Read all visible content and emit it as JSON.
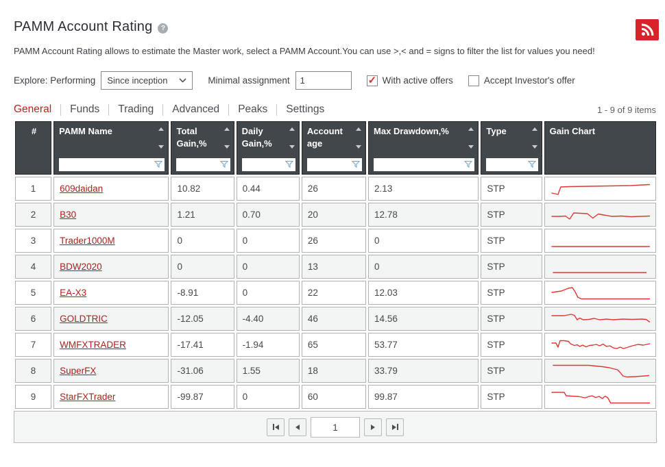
{
  "header": {
    "title": "PAMM Account Rating",
    "help_icon": "?",
    "description": "PAMM Account Rating allows to estimate the Master work, select a PAMM Account.You can use >,< and = signs to filter the list for values you need!"
  },
  "controls": {
    "explore_label": "Explore: Performing",
    "period_select": {
      "value": "Since inception"
    },
    "minimal_assignment_label": "Minimal assignment",
    "minimal_assignment_value": "1",
    "with_active_offers": {
      "label": "With active offers",
      "checked": true
    },
    "accept_investors_offer": {
      "label": "Accept Investor's offer",
      "checked": false
    }
  },
  "tabs": {
    "items": [
      {
        "label": "General",
        "active": true
      },
      {
        "label": "Funds",
        "active": false
      },
      {
        "label": "Trading",
        "active": false
      },
      {
        "label": "Advanced",
        "active": false
      },
      {
        "label": "Peaks",
        "active": false
      },
      {
        "label": "Settings",
        "active": false
      }
    ],
    "items_count": "1 - 9 of 9 items"
  },
  "table": {
    "columns": [
      {
        "key": "num",
        "label": "#",
        "sortable": false,
        "filterable": false
      },
      {
        "key": "name",
        "label": "PAMM Name",
        "sortable": true,
        "filterable": true,
        "filter_value": ""
      },
      {
        "key": "total_gain",
        "label": "Total Gain,%",
        "sortable": true,
        "filterable": true,
        "filter_value": ""
      },
      {
        "key": "daily_gain",
        "label": "Daily Gain,%",
        "sortable": true,
        "filterable": true,
        "filter_value": ""
      },
      {
        "key": "account_age",
        "label": "Account age",
        "sortable": true,
        "filterable": true,
        "filter_value": ""
      },
      {
        "key": "max_drawdown",
        "label": "Max Drawdown,%",
        "sortable": true,
        "filterable": true,
        "filter_value": ""
      },
      {
        "key": "type",
        "label": "Type",
        "sortable": true,
        "filterable": true,
        "filter_value": ""
      },
      {
        "key": "chart",
        "label": "Gain Chart",
        "sortable": false,
        "filterable": false
      }
    ],
    "rows": [
      {
        "num": "1",
        "name": "609daidan",
        "total_gain": "10.82",
        "daily_gain": "0.44",
        "account_age": "26",
        "max_drawdown": "2.13",
        "type": "STP",
        "sparkline": [
          [
            4,
            21
          ],
          [
            9,
            22
          ],
          [
            13,
            23
          ],
          [
            17,
            12
          ],
          [
            30,
            11.5
          ],
          [
            60,
            11
          ],
          [
            90,
            10.5
          ],
          [
            120,
            10
          ],
          [
            147,
            8.5
          ]
        ]
      },
      {
        "num": "2",
        "name": "B30",
        "total_gain": "1.21",
        "daily_gain": "0.70",
        "account_age": "20",
        "max_drawdown": "12.78",
        "type": "STP",
        "sparkline": [
          [
            4,
            17
          ],
          [
            16,
            17
          ],
          [
            24,
            16.5
          ],
          [
            30,
            21
          ],
          [
            36,
            12
          ],
          [
            46,
            12.5
          ],
          [
            56,
            13
          ],
          [
            64,
            19.5
          ],
          [
            72,
            13.5
          ],
          [
            80,
            15
          ],
          [
            92,
            17
          ],
          [
            106,
            16.5
          ],
          [
            120,
            17.5
          ],
          [
            134,
            17
          ],
          [
            147,
            16.5
          ]
        ]
      },
      {
        "num": "3",
        "name": "Trader1000M",
        "total_gain": "0",
        "daily_gain": "0",
        "account_age": "26",
        "max_drawdown": "0",
        "type": "STP",
        "sparkline": [
          [
            4,
            23
          ],
          [
            147,
            23
          ]
        ]
      },
      {
        "num": "4",
        "name": "BDW2020",
        "total_gain": "0",
        "daily_gain": "0",
        "account_age": "13",
        "max_drawdown": "0",
        "type": "STP",
        "sparkline": [
          [
            6,
            23
          ],
          [
            142,
            23
          ]
        ]
      },
      {
        "num": "5",
        "name": "EA-X3",
        "total_gain": "-8.91",
        "daily_gain": "0",
        "account_age": "22",
        "max_drawdown": "12.03",
        "type": "STP",
        "sparkline": [
          [
            4,
            14
          ],
          [
            18,
            12
          ],
          [
            28,
            8
          ],
          [
            34,
            7
          ],
          [
            38,
            13
          ],
          [
            42,
            21
          ],
          [
            47,
            23.5
          ],
          [
            147,
            23.5
          ]
        ]
      },
      {
        "num": "6",
        "name": "GOLDTRIC",
        "total_gain": "-12.05",
        "daily_gain": "-4.40",
        "account_age": "46",
        "max_drawdown": "14.56",
        "type": "STP",
        "sparkline": [
          [
            4,
            10
          ],
          [
            22,
            10
          ],
          [
            32,
            8
          ],
          [
            37,
            9.5
          ],
          [
            41,
            16
          ],
          [
            45,
            13.5
          ],
          [
            50,
            16
          ],
          [
            58,
            15.5
          ],
          [
            66,
            14
          ],
          [
            74,
            16
          ],
          [
            84,
            15
          ],
          [
            94,
            16
          ],
          [
            108,
            15
          ],
          [
            122,
            15.5
          ],
          [
            136,
            15
          ],
          [
            142,
            15.5
          ],
          [
            147,
            19
          ]
        ]
      },
      {
        "num": "7",
        "name": "WMFXTRADER",
        "total_gain": "-17.41",
        "daily_gain": "-1.94",
        "account_age": "65",
        "max_drawdown": "53.77",
        "type": "STP",
        "sparkline": [
          [
            4,
            12
          ],
          [
            10,
            12
          ],
          [
            13,
            18
          ],
          [
            16,
            8.5
          ],
          [
            22,
            8.5
          ],
          [
            28,
            9.5
          ],
          [
            32,
            13.5
          ],
          [
            37,
            15.5
          ],
          [
            41,
            14.5
          ],
          [
            45,
            17
          ],
          [
            49,
            15
          ],
          [
            54,
            17.5
          ],
          [
            59,
            15.5
          ],
          [
            64,
            15
          ],
          [
            69,
            14
          ],
          [
            74,
            16
          ],
          [
            79,
            13.5
          ],
          [
            84,
            17
          ],
          [
            89,
            16
          ],
          [
            94,
            19
          ],
          [
            99,
            20
          ],
          [
            104,
            18
          ],
          [
            109,
            20
          ],
          [
            114,
            18.5
          ],
          [
            120,
            16.5
          ],
          [
            130,
            14
          ],
          [
            138,
            15
          ],
          [
            147,
            13
          ]
        ]
      },
      {
        "num": "8",
        "name": "SuperFX",
        "total_gain": "-31.06",
        "daily_gain": "1.55",
        "account_age": "18",
        "max_drawdown": "33.79",
        "type": "STP",
        "sparkline": [
          [
            6,
            6.5
          ],
          [
            58,
            6.5
          ],
          [
            68,
            7.5
          ],
          [
            78,
            8.5
          ],
          [
            88,
            10
          ],
          [
            94,
            11.5
          ],
          [
            100,
            13
          ],
          [
            104,
            17
          ],
          [
            108,
            22
          ],
          [
            114,
            23.5
          ],
          [
            126,
            23
          ],
          [
            140,
            22
          ],
          [
            146,
            21.5
          ]
        ]
      },
      {
        "num": "9",
        "name": "StarFXTrader",
        "total_gain": "-99.87",
        "daily_gain": "0",
        "account_age": "60",
        "max_drawdown": "99.87",
        "type": "STP",
        "sparkline": [
          [
            4,
            8
          ],
          [
            22,
            8
          ],
          [
            25,
            13
          ],
          [
            33,
            13.5
          ],
          [
            43,
            14
          ],
          [
            48,
            15
          ],
          [
            53,
            16
          ],
          [
            58,
            14
          ],
          [
            63,
            13
          ],
          [
            68,
            15.5
          ],
          [
            73,
            14
          ],
          [
            78,
            17
          ],
          [
            82,
            13.5
          ],
          [
            86,
            16
          ],
          [
            90,
            23.5
          ],
          [
            147,
            23.5
          ]
        ]
      }
    ]
  },
  "pagination": {
    "page": "1"
  },
  "colors": {
    "accent_red": "#c2201a",
    "rss_red": "#d8232a",
    "header_bg": "#42474c",
    "link_red": "#a3241f",
    "sparkline_red": "#dc3832",
    "funnel_blue": "#6fa8dc",
    "check_red": "#d9302c"
  }
}
